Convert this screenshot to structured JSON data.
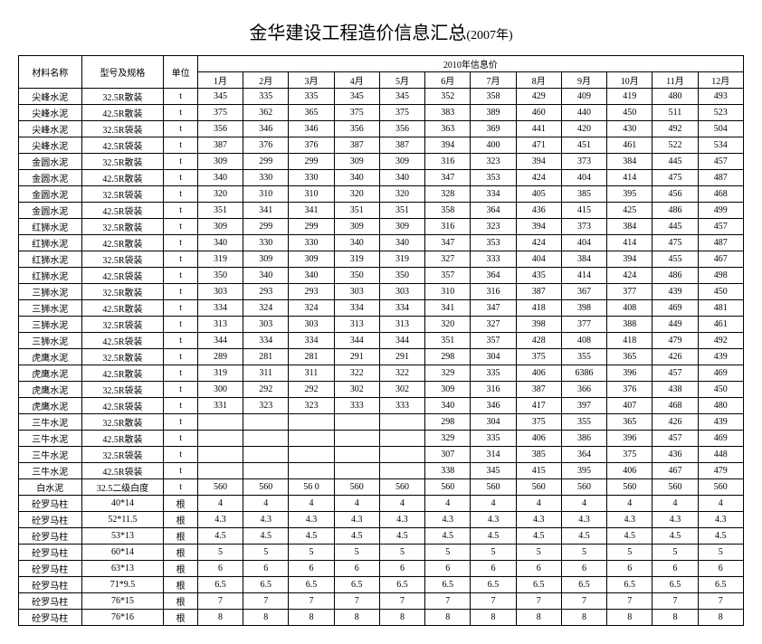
{
  "title_main": "金华建设工程造价信息汇总",
  "title_year": "(2007年)",
  "header": {
    "col_name": "材料名称",
    "col_spec": "型号及规格",
    "col_unit": "单位",
    "price_header": "2010年信息价",
    "months": [
      "1月",
      "2月",
      "3月",
      "4月",
      "5月",
      "6月",
      "7月",
      "8月",
      "9月",
      "10月",
      "11月",
      "12月"
    ]
  },
  "rows": [
    {
      "name": "尖峰水泥",
      "spec": "32.5R散装",
      "unit": "t",
      "v": [
        "345",
        "335",
        "335",
        "345",
        "345",
        "352",
        "358",
        "429",
        "409",
        "419",
        "480",
        "493"
      ]
    },
    {
      "name": "尖峰水泥",
      "spec": "42.5R散装",
      "unit": "t",
      "v": [
        "375",
        "362",
        "365",
        "375",
        "375",
        "383",
        "389",
        "460",
        "440",
        "450",
        "511",
        "523"
      ]
    },
    {
      "name": "尖峰水泥",
      "spec": "32.5R袋装",
      "unit": "t",
      "v": [
        "356",
        "346",
        "346",
        "356",
        "356",
        "363",
        "369",
        "441",
        "420",
        "430",
        "492",
        "504"
      ]
    },
    {
      "name": "尖峰水泥",
      "spec": "42.5R袋装",
      "unit": "t",
      "v": [
        "387",
        "376",
        "376",
        "387",
        "387",
        "394",
        "400",
        "471",
        "451",
        "461",
        "522",
        "534"
      ]
    },
    {
      "name": "金圆水泥",
      "spec": "32.5R散装",
      "unit": "t",
      "v": [
        "309",
        "299",
        "299",
        "309",
        "309",
        "316",
        "323",
        "394",
        "373",
        "384",
        "445",
        "457"
      ]
    },
    {
      "name": "金圆水泥",
      "spec": "42.5R散装",
      "unit": "t",
      "v": [
        "340",
        "330",
        "330",
        "340",
        "340",
        "347",
        "353",
        "424",
        "404",
        "414",
        "475",
        "487"
      ]
    },
    {
      "name": "金圆水泥",
      "spec": "32.5R袋装",
      "unit": "t",
      "v": [
        "320",
        "310",
        "310",
        "320",
        "320",
        "328",
        "334",
        "405",
        "385",
        "395",
        "456",
        "468"
      ]
    },
    {
      "name": "金圆水泥",
      "spec": "42.5R袋装",
      "unit": "t",
      "v": [
        "351",
        "341",
        "341",
        "351",
        "351",
        "358",
        "364",
        "436",
        "415",
        "425",
        "486",
        "499"
      ]
    },
    {
      "name": "红狮水泥",
      "spec": "32.5R散装",
      "unit": "t",
      "v": [
        "309",
        "299",
        "299",
        "309",
        "309",
        "316",
        "323",
        "394",
        "373",
        "384",
        "445",
        "457"
      ]
    },
    {
      "name": "红狮水泥",
      "spec": "42.5R散装",
      "unit": "t",
      "v": [
        "340",
        "330",
        "330",
        "340",
        "340",
        "347",
        "353",
        "424",
        "404",
        "414",
        "475",
        "487"
      ]
    },
    {
      "name": "红狮水泥",
      "spec": "32.5R袋装",
      "unit": "t",
      "v": [
        "319",
        "309",
        "309",
        "319",
        "319",
        "327",
        "333",
        "404",
        "384",
        "394",
        "455",
        "467"
      ]
    },
    {
      "name": "红狮水泥",
      "spec": "42.5R袋装",
      "unit": "t",
      "v": [
        "350",
        "340",
        "340",
        "350",
        "350",
        "357",
        "364",
        "435",
        "414",
        "424",
        "486",
        "498"
      ]
    },
    {
      "name": "三狮水泥",
      "spec": "32.5R散装",
      "unit": "t",
      "v": [
        "303",
        "293",
        "293",
        "303",
        "303",
        "310",
        "316",
        "387",
        "367",
        "377",
        "439",
        "450"
      ]
    },
    {
      "name": "三狮水泥",
      "spec": "42.5R散装",
      "unit": "t",
      "v": [
        "334",
        "324",
        "324",
        "334",
        "334",
        "341",
        "347",
        "418",
        "398",
        "408",
        "469",
        "481"
      ]
    },
    {
      "name": "三狮水泥",
      "spec": "32.5R袋装",
      "unit": "t",
      "v": [
        "313",
        "303",
        "303",
        "313",
        "313",
        "320",
        "327",
        "398",
        "377",
        "388",
        "449",
        "461"
      ]
    },
    {
      "name": "三狮水泥",
      "spec": "42.5R袋装",
      "unit": "t",
      "v": [
        "344",
        "334",
        "334",
        "344",
        "344",
        "351",
        "357",
        "428",
        "408",
        "418",
        "479",
        "492"
      ]
    },
    {
      "name": "虎鹰水泥",
      "spec": "32.5R散装",
      "unit": "t",
      "v": [
        "289",
        "281",
        "281",
        "291",
        "291",
        "298",
        "304",
        "375",
        "355",
        "365",
        "426",
        "439"
      ]
    },
    {
      "name": "虎鹰水泥",
      "spec": "42.5R散装",
      "unit": "t",
      "v": [
        "319",
        "311",
        "311",
        "322",
        "322",
        "329",
        "335",
        "406",
        "6386",
        "396",
        "457",
        "469"
      ]
    },
    {
      "name": "虎鹰水泥",
      "spec": "32.5R袋装",
      "unit": "t",
      "v": [
        "300",
        "292",
        "292",
        "302",
        "302",
        "309",
        "316",
        "387",
        "366",
        "376",
        "438",
        "450"
      ]
    },
    {
      "name": "虎鹰水泥",
      "spec": "42.5R袋装",
      "unit": "t",
      "v": [
        "331",
        "323",
        "323",
        "333",
        "333",
        "340",
        "346",
        "417",
        "397",
        "407",
        "468",
        "480"
      ]
    },
    {
      "name": "三牛水泥",
      "spec": "32.5R散装",
      "unit": "t",
      "v": [
        "",
        "",
        "",
        "",
        "",
        "298",
        "304",
        "375",
        "355",
        "365",
        "426",
        "439"
      ]
    },
    {
      "name": "三牛水泥",
      "spec": "42.5R散装",
      "unit": "t",
      "v": [
        "",
        "",
        "",
        "",
        "",
        "329",
        "335",
        "406",
        "386",
        "396",
        "457",
        "469"
      ]
    },
    {
      "name": "三牛水泥",
      "spec": "32.5R袋装",
      "unit": "t",
      "v": [
        "",
        "",
        "",
        "",
        "",
        "307",
        "314",
        "385",
        "364",
        "375",
        "436",
        "448"
      ]
    },
    {
      "name": "三牛水泥",
      "spec": "42.5R袋装",
      "unit": "t",
      "v": [
        "",
        "",
        "",
        "",
        "",
        "338",
        "345",
        "415",
        "395",
        "406",
        "467",
        "479"
      ]
    },
    {
      "name": "白水泥",
      "spec": "32.5二级白度",
      "unit": "t",
      "v": [
        "560",
        "560",
        "56 0",
        "560",
        "560",
        "560",
        "560",
        "560",
        "560",
        "560",
        "560",
        "560"
      ]
    },
    {
      "name": "砼罗马柱",
      "spec": "40*14",
      "unit": "根",
      "v": [
        "4",
        "4",
        "4",
        "4",
        "4",
        "4",
        "4",
        "4",
        "4",
        "4",
        "4",
        "4"
      ]
    },
    {
      "name": "砼罗马柱",
      "spec": "52*11.5",
      "unit": "根",
      "v": [
        "4.3",
        "4.3",
        "4.3",
        "4.3",
        "4.3",
        "4.3",
        "4.3",
        "4.3",
        "4.3",
        "4.3",
        "4.3",
        "4.3"
      ]
    },
    {
      "name": "砼罗马柱",
      "spec": "53*13",
      "unit": "根",
      "v": [
        "4.5",
        "4.5",
        "4.5",
        "4.5",
        "4.5",
        "4.5",
        "4.5",
        "4.5",
        "4.5",
        "4.5",
        "4.5",
        "4.5"
      ]
    },
    {
      "name": "砼罗马柱",
      "spec": "60*14",
      "unit": "根",
      "v": [
        "5",
        "5",
        "5",
        "5",
        "5",
        "5",
        "5",
        "5",
        "5",
        "5",
        "5",
        "5"
      ]
    },
    {
      "name": "砼罗马柱",
      "spec": "63*13",
      "unit": "根",
      "v": [
        "6",
        "6",
        "6",
        "6",
        "6",
        "6",
        "6",
        "6",
        "6",
        "6",
        "6",
        "6"
      ]
    },
    {
      "name": "砼罗马柱",
      "spec": "71*9.5",
      "unit": "根",
      "v": [
        "6.5",
        "6.5",
        "6.5",
        "6.5",
        "6.5",
        "6.5",
        "6.5",
        "6.5",
        "6.5",
        "6.5",
        "6.5",
        "6.5"
      ]
    },
    {
      "name": "砼罗马柱",
      "spec": "76*15",
      "unit": "根",
      "v": [
        "7",
        "7",
        "7",
        "7",
        "7",
        "7",
        "7",
        "7",
        "7",
        "7",
        "7",
        "7"
      ]
    },
    {
      "name": "砼罗马柱",
      "spec": "76*16",
      "unit": "根",
      "v": [
        "8",
        "8",
        "8",
        "8",
        "8",
        "8",
        "8",
        "8",
        "8",
        "8",
        "8",
        "8"
      ]
    }
  ]
}
